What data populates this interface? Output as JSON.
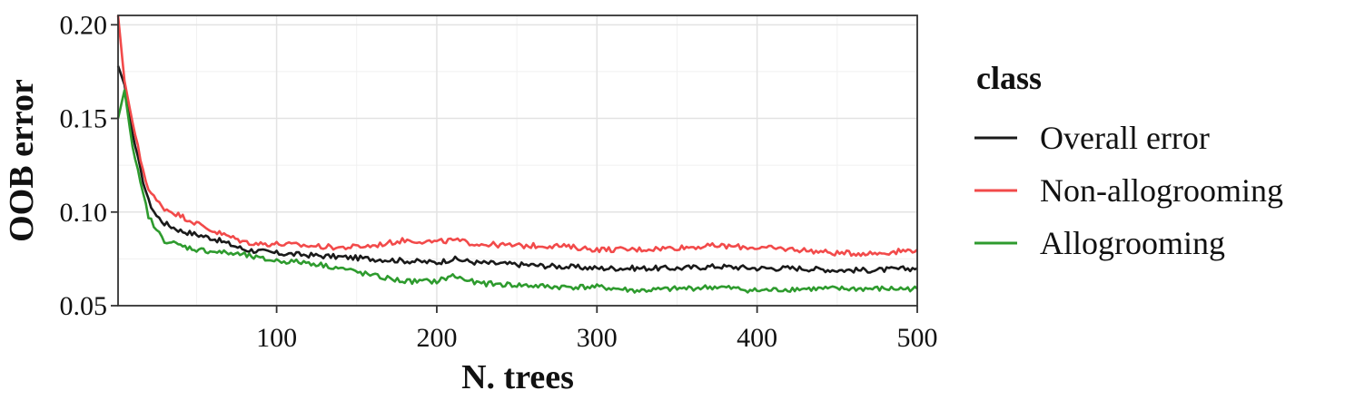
{
  "chart_data": {
    "type": "line",
    "title": "",
    "xlabel": "N. trees",
    "ylabel": "OOB error",
    "xlim": [
      1,
      500
    ],
    "ylim": [
      0.05,
      0.205
    ],
    "x_ticks": [
      100,
      200,
      300,
      400,
      500
    ],
    "x_tick_labels": [
      "100",
      "200",
      "300",
      "400",
      "500"
    ],
    "y_ticks": [
      0.05,
      0.1,
      0.15,
      0.2
    ],
    "y_tick_labels": [
      "0.05",
      "0.10",
      "0.15",
      "0.20"
    ],
    "grid": true,
    "legend": {
      "title": "class",
      "position": "right"
    },
    "series": [
      {
        "name": "Overall error",
        "color": "#1a1a1a",
        "x": [
          1,
          5,
          10,
          15,
          20,
          25,
          30,
          40,
          50,
          60,
          70,
          80,
          90,
          100,
          120,
          140,
          160,
          180,
          200,
          210,
          225,
          250,
          275,
          300,
          325,
          350,
          375,
          400,
          425,
          450,
          475,
          500
        ],
        "y": [
          0.178,
          0.168,
          0.142,
          0.122,
          0.106,
          0.098,
          0.094,
          0.09,
          0.088,
          0.086,
          0.083,
          0.08,
          0.079,
          0.078,
          0.077,
          0.076,
          0.075,
          0.074,
          0.073,
          0.075,
          0.073,
          0.072,
          0.071,
          0.07,
          0.07,
          0.07,
          0.071,
          0.07,
          0.07,
          0.069,
          0.069,
          0.07
        ]
      },
      {
        "name": "Non-allogrooming",
        "color": "#f24a4a",
        "x": [
          1,
          5,
          10,
          15,
          20,
          25,
          30,
          40,
          50,
          60,
          70,
          80,
          90,
          100,
          120,
          140,
          160,
          180,
          200,
          210,
          225,
          250,
          275,
          300,
          325,
          350,
          375,
          400,
          425,
          450,
          475,
          500
        ],
        "y": [
          0.205,
          0.17,
          0.148,
          0.128,
          0.112,
          0.106,
          0.102,
          0.098,
          0.094,
          0.09,
          0.087,
          0.084,
          0.083,
          0.083,
          0.082,
          0.081,
          0.082,
          0.085,
          0.084,
          0.085,
          0.083,
          0.082,
          0.082,
          0.08,
          0.08,
          0.081,
          0.082,
          0.081,
          0.08,
          0.078,
          0.078,
          0.08
        ]
      },
      {
        "name": "Allogrooming",
        "color": "#2e9b2e",
        "x": [
          1,
          5,
          10,
          15,
          20,
          25,
          30,
          40,
          50,
          60,
          70,
          80,
          90,
          100,
          120,
          140,
          160,
          180,
          200,
          210,
          225,
          250,
          275,
          300,
          325,
          350,
          375,
          400,
          425,
          450,
          475,
          500
        ],
        "y": [
          0.15,
          0.165,
          0.135,
          0.115,
          0.098,
          0.09,
          0.085,
          0.082,
          0.08,
          0.079,
          0.078,
          0.077,
          0.075,
          0.074,
          0.073,
          0.07,
          0.066,
          0.063,
          0.063,
          0.066,
          0.062,
          0.061,
          0.06,
          0.06,
          0.058,
          0.059,
          0.06,
          0.058,
          0.059,
          0.059,
          0.059,
          0.059
        ]
      }
    ]
  }
}
